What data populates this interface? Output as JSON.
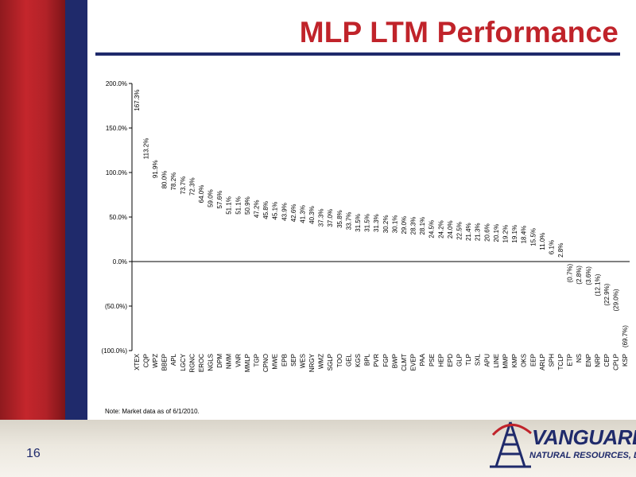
{
  "slide": {
    "title": "MLP LTM Performance",
    "note": "Note: Market data as of 6/1/2010.",
    "page_number": "16"
  },
  "logo": {
    "name": "VANGUARD",
    "subtitle": "NATURAL RESOURCES, LLC"
  },
  "colors": {
    "brand_red": "#c0232a",
    "brand_navy": "#1f2a6b"
  },
  "chart_data": {
    "type": "bar",
    "title": "",
    "xlabel": "",
    "ylabel": "",
    "ylim": [
      -100,
      200
    ],
    "yticks": [
      200,
      150,
      100,
      50,
      0,
      -50,
      -100
    ],
    "ytick_labels": [
      "200.0%",
      "150.0%",
      "100.0%",
      "50.0%",
      "0.0%",
      "(50.0%)",
      "(100.0%)"
    ],
    "grid": false,
    "legend": "none",
    "categories": [
      "XTEX",
      "CQP",
      "WPZ",
      "BBEP",
      "APL",
      "LGCY",
      "RGNC",
      "EROC",
      "NGLS",
      "DPM",
      "NMM",
      "VNR",
      "MMLP",
      "TGP",
      "CPNO",
      "MWE",
      "EPB",
      "SEP",
      "WES",
      "NRGY",
      "WMZ",
      "SGLP",
      "TOO",
      "GEL",
      "KGS",
      "BPL",
      "PVR",
      "FGP",
      "BWP",
      "CLMT",
      "EVEP",
      "PAA",
      "PSE",
      "HEP",
      "EPD",
      "GLP",
      "TLP",
      "SXL",
      "APU",
      "LINE",
      "MMP",
      "KMP",
      "OKS",
      "EEP",
      "ARLP",
      "SPH",
      "TCLP",
      "ETP",
      "NS",
      "ENP",
      "NRP",
      "CEP",
      "CPLP",
      "KSP"
    ],
    "values": [
      167.3,
      113.2,
      91.9,
      80.0,
      78.2,
      73.7,
      72.3,
      64.0,
      59.0,
      57.6,
      51.1,
      51.1,
      50.9,
      47.2,
      45.8,
      45.1,
      43.9,
      42.6,
      41.3,
      40.3,
      37.3,
      37.0,
      35.8,
      33.7,
      31.5,
      31.5,
      31.3,
      30.2,
      30.1,
      29.0,
      28.3,
      28.1,
      24.5,
      24.2,
      24.0,
      22.5,
      21.4,
      21.3,
      20.6,
      20.1,
      19.2,
      19.1,
      18.4,
      15.5,
      11.0,
      6.1,
      2.8,
      -0.7,
      -2.8,
      -3.6,
      -12.1,
      -22.9,
      -29.0,
      -69.7
    ],
    "value_labels": [
      "167.3%",
      "113.2%",
      "91.9%",
      "80.0%",
      "78.2%",
      "73.7%",
      "72.3%",
      "64.0%",
      "59.0%",
      "57.6%",
      "51.1%",
      "51.1%",
      "50.9%",
      "47.2%",
      "45.8%",
      "45.1%",
      "43.9%",
      "42.6%",
      "41.3%",
      "40.3%",
      "37.3%",
      "37.0%",
      "35.8%",
      "33.7%",
      "31.5%",
      "31.5%",
      "31.3%",
      "30.2%",
      "30.1%",
      "29.0%",
      "28.3%",
      "28.1%",
      "24.5%",
      "24.2%",
      "24.0%",
      "22.5%",
      "21.4%",
      "21.3%",
      "20.6%",
      "20.1%",
      "19.2%",
      "19.1%",
      "18.4%",
      "15.5%",
      "11.0%",
      "6.1%",
      "2.8%",
      "(0.7%)",
      "(2.8%)",
      "(3.6%)",
      "(12.1%)",
      "(22.9%)",
      "(29.0%)",
      "(69.7%)"
    ]
  }
}
